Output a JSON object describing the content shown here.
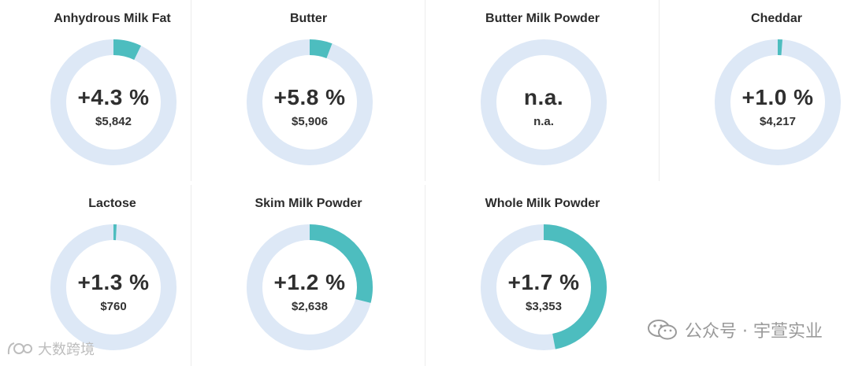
{
  "chart_data": {
    "type": "pie",
    "ring_color": "#dde8f6",
    "value_color": "#4dbdbf",
    "items": [
      {
        "name": "Anhydrous Milk Fat",
        "change_label": "+4.3 %",
        "change": 4.3,
        "price": "$5,842",
        "fill": 0.072
      },
      {
        "name": "Butter",
        "change_label": "+5.8 %",
        "change": 5.8,
        "price": "$5,906",
        "fill": 0.058
      },
      {
        "name": "Butter Milk Powder",
        "change_label": "n.a.",
        "change": null,
        "price": "n.a.",
        "fill": 0
      },
      {
        "name": "Cheddar",
        "change_label": "+1.0 %",
        "change": 1.0,
        "price": "$4,217",
        "fill": 0.012
      },
      {
        "name": "Lactose",
        "change_label": "+1.3 %",
        "change": 1.3,
        "price": "$760",
        "fill": 0.008
      },
      {
        "name": "Skim Milk Powder",
        "change_label": "+1.2 %",
        "change": 1.2,
        "price": "$2,638",
        "fill": 0.29
      },
      {
        "name": "Whole Milk Powder",
        "change_label": "+1.7 %",
        "change": 1.7,
        "price": "$3,353",
        "fill": 0.47
      }
    ]
  },
  "watermarks": {
    "right": "公众号 · 宇萱实业",
    "left": "大数跨境",
    "right_icon": "wechat-icon",
    "left_icon": "logo-icon"
  }
}
